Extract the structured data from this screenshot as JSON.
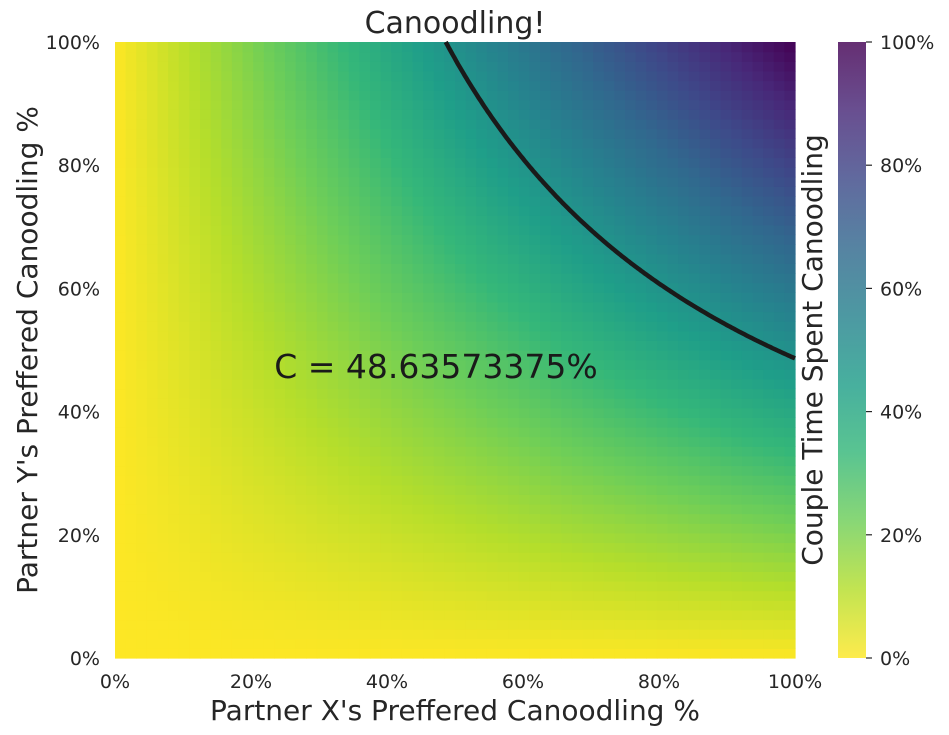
{
  "chart_data": {
    "type": "heatmap",
    "title": "Canoodling!",
    "xlabel": "Partner X's Preffered Canoodling %",
    "ylabel": "Partner Y's Preffered Canoodling %",
    "colorbar_label": "Couple Time Spent Canoodling",
    "xlim": [
      0,
      100
    ],
    "ylim": [
      0,
      100
    ],
    "x_ticks": [
      0,
      20,
      40,
      60,
      80,
      100
    ],
    "y_ticks": [
      0,
      20,
      40,
      60,
      80,
      100
    ],
    "x_tick_labels": [
      "0%",
      "20%",
      "40%",
      "60%",
      "80%",
      "100%"
    ],
    "y_tick_labels": [
      "0%",
      "20%",
      "40%",
      "60%",
      "80%",
      "100%"
    ],
    "colorbar_ticks": [
      0,
      20,
      40,
      60,
      80,
      100
    ],
    "colorbar_tick_labels": [
      "0%",
      "20%",
      "40%",
      "60%",
      "80%",
      "100%"
    ],
    "colorbar_range": [
      0,
      100
    ],
    "colormap": "viridis (reversed)",
    "colormap_stops": [
      "#fde725",
      "#b5de2b",
      "#6ece58",
      "#35b779",
      "#1f9e89",
      "#26828e",
      "#31688e",
      "#3e4989",
      "#482878",
      "#440154"
    ],
    "grid": false,
    "contour_level": 48.63573375,
    "annotation": "C = 48.63573375%",
    "colors": {
      "contour": "#1a1a1a",
      "text": "#262626"
    }
  }
}
